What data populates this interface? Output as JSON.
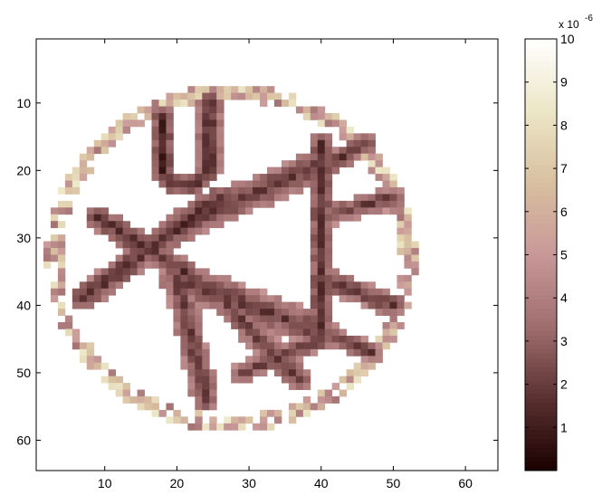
{
  "chart_data": [
    {
      "type": "heatmap",
      "title": "",
      "xlabel": "",
      "ylabel": "",
      "grid_size": [
        64,
        64
      ],
      "xlim": [
        0.5,
        64.5
      ],
      "ylim": [
        0.5,
        64.5
      ],
      "y_direction": "reversed",
      "x_ticks": [
        10,
        20,
        30,
        40,
        50,
        60
      ],
      "y_ticks": [
        10,
        20,
        30,
        40,
        50,
        60
      ],
      "grid": false,
      "colormap": "pink-inverted",
      "colormap_stops": [
        "#1a0000",
        "#5a3030",
        "#a06e6e",
        "#c89898",
        "#d8c0a0",
        "#ece6c6",
        "#ffffff"
      ],
      "background_value": 10,
      "unit_multiplier": "x 10^-6",
      "structures": [
        {
          "name": "outer-ring",
          "kind": "circle",
          "center": [
            27.5,
            33
          ],
          "radius": 24.5,
          "value": 7
        },
        {
          "name": "u-shape-left-arm",
          "kind": "segment",
          "from": [
            18,
            12
          ],
          "to": [
            18,
            20
          ],
          "width": 2.4,
          "value": 1.2
        },
        {
          "name": "u-shape-right-arm",
          "kind": "segment",
          "from": [
            24.5,
            10
          ],
          "to": [
            24.5,
            20
          ],
          "width": 2.4,
          "value": 1.2
        },
        {
          "name": "u-shape-bottom",
          "kind": "arc",
          "center": [
            21,
            19
          ],
          "radius": 3.3,
          "start_deg": 0,
          "end_deg": 180,
          "width": 2.4,
          "value": 1.4
        },
        {
          "name": "strut-diag-1",
          "kind": "segment",
          "from": [
            9,
            27
          ],
          "to": [
            21,
            35
          ],
          "width": 3,
          "value": 1.5
        },
        {
          "name": "strut-diag-2",
          "kind": "segment",
          "from": [
            7,
            39
          ],
          "to": [
            26,
            24
          ],
          "width": 3.2,
          "value": 1.5
        },
        {
          "name": "strut-top",
          "kind": "segment",
          "from": [
            21,
            28
          ],
          "to": [
            40,
            19
          ],
          "width": 4.2,
          "value": 1.8
        },
        {
          "name": "strut-lower-left",
          "kind": "segment",
          "from": [
            20,
            36
          ],
          "to": [
            24,
            54
          ],
          "width": 3.2,
          "value": 1.8
        },
        {
          "name": "strut-lower",
          "kind": "segment",
          "from": [
            20,
            36
          ],
          "to": [
            40,
            44
          ],
          "width": 4.5,
          "value": 1.8
        },
        {
          "name": "strut-lower-branch",
          "kind": "segment",
          "from": [
            27,
            40
          ],
          "to": [
            37,
            51
          ],
          "width": 3.2,
          "value": 1.8
        },
        {
          "name": "strut-lower-branch-2",
          "kind": "segment",
          "from": [
            29,
            50
          ],
          "to": [
            40,
            45
          ],
          "width": 2.5,
          "value": 1.9
        },
        {
          "name": "strut-vertical-right",
          "kind": "segment",
          "from": [
            40,
            16
          ],
          "to": [
            40,
            45
          ],
          "width": 3.2,
          "value": 1.7
        },
        {
          "name": "strut-right-top",
          "kind": "segment",
          "from": [
            40,
            20
          ],
          "to": [
            46,
            16
          ],
          "width": 2.6,
          "value": 1.8
        },
        {
          "name": "strut-right-mid",
          "kind": "segment",
          "from": [
            40,
            27
          ],
          "to": [
            50,
            24
          ],
          "width": 2.6,
          "value": 1.9
        },
        {
          "name": "strut-right-low",
          "kind": "segment",
          "from": [
            40,
            36
          ],
          "to": [
            50,
            40
          ],
          "width": 3,
          "value": 1.8
        },
        {
          "name": "strut-right-bottom",
          "kind": "segment",
          "from": [
            40,
            44
          ],
          "to": [
            47,
            47
          ],
          "width": 2.2,
          "value": 1.9
        }
      ]
    },
    {
      "type": "colorbar",
      "range": [
        0,
        10
      ],
      "ticks": [
        1,
        2,
        3,
        4,
        5,
        6,
        7,
        8,
        9,
        10
      ],
      "exponent_label": "x 10",
      "exponent_power": "-6"
    }
  ]
}
